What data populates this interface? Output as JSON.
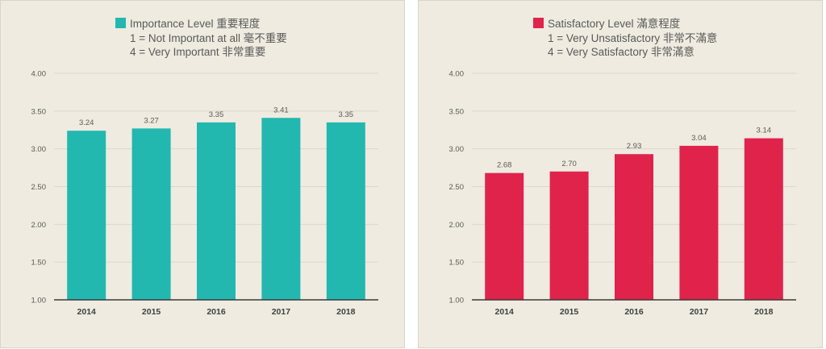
{
  "chart_data": [
    {
      "type": "bar",
      "legend": {
        "label": "Importance Level 重要程度",
        "lines": [
          "1 = Not Important at all 毫不重要",
          "4 = Very Important 非常重要"
        ]
      },
      "color": "#22b8b0",
      "categories": [
        "2014",
        "2015",
        "2016",
        "2017",
        "2018"
      ],
      "values": [
        3.24,
        3.27,
        3.35,
        3.41,
        3.35
      ],
      "value_labels": [
        "3.24",
        "3.27",
        "3.35",
        "3.41",
        "3.35"
      ],
      "ylim": [
        1.0,
        4.0
      ],
      "yticks": [
        "1.00",
        "1.50",
        "2.00",
        "2.50",
        "3.00",
        "3.50",
        "4.00"
      ],
      "grid": true,
      "legend_position": "top"
    },
    {
      "type": "bar",
      "legend": {
        "label": "Satisfactory Level 滿意程度",
        "lines": [
          "1 = Very Unsatisfactory 非常不滿意",
          "4 = Very Satisfactory 非常滿意"
        ]
      },
      "color": "#e0234b",
      "categories": [
        "2014",
        "2015",
        "2016",
        "2017",
        "2018"
      ],
      "values": [
        2.68,
        2.7,
        2.93,
        3.04,
        3.14
      ],
      "value_labels": [
        "2.68",
        "2.70",
        "2.93",
        "3.04",
        "3.14"
      ],
      "ylim": [
        1.0,
        4.0
      ],
      "yticks": [
        "1.00",
        "1.50",
        "2.00",
        "2.50",
        "3.00",
        "3.50",
        "4.00"
      ],
      "grid": true,
      "legend_position": "top"
    }
  ]
}
